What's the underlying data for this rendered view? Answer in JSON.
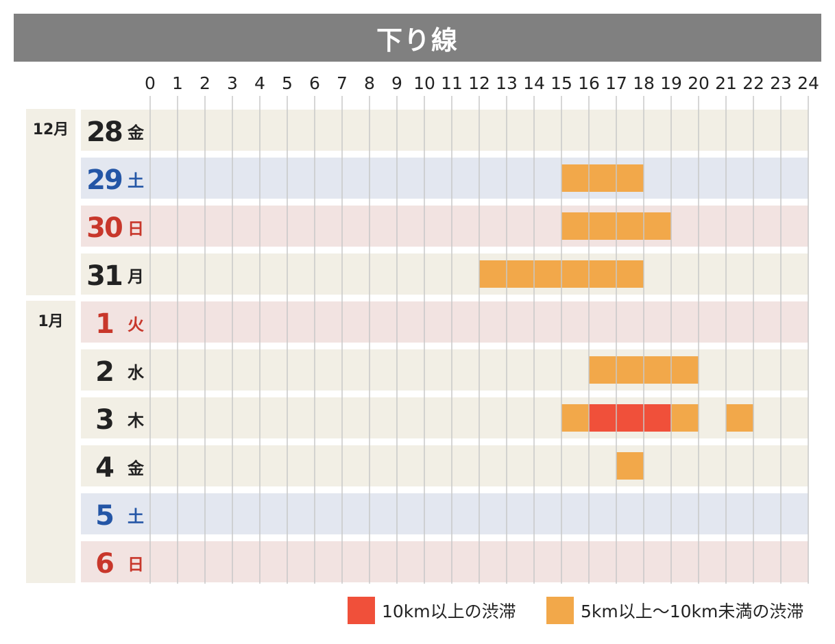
{
  "title": "下り線",
  "chart_data": {
    "type": "bar",
    "orientation": "horizontal-timeline",
    "x": [
      0,
      1,
      2,
      3,
      4,
      5,
      6,
      7,
      8,
      9,
      10,
      11,
      12,
      13,
      14,
      15,
      16,
      17,
      18,
      19,
      20,
      21,
      22,
      23,
      24
    ],
    "xlim": [
      0,
      24
    ],
    "grid": true,
    "legend_position": "bottom-right",
    "colors": {
      "heavy": "#f0503a",
      "moderate": "#f2a84a",
      "row_weekday": "#f2efe5",
      "row_saturday": "#e3e7f0",
      "row_holiday": "#f2e3e1",
      "text_weekday": "#222222",
      "text_saturday": "#2456a6",
      "text_holiday": "#c8372b",
      "grid": "#c8c8c8"
    },
    "months": [
      {
        "label": "12月",
        "start_row": 0,
        "end_row": 3
      },
      {
        "label": "1月",
        "start_row": 4,
        "end_row": 9
      }
    ],
    "rows": [
      {
        "day": "28",
        "weekday": "金",
        "type": "weekday",
        "segments": []
      },
      {
        "day": "29",
        "weekday": "土",
        "type": "saturday",
        "segments": [
          {
            "start": 15,
            "end": 18,
            "level": "moderate"
          }
        ]
      },
      {
        "day": "30",
        "weekday": "日",
        "type": "holiday",
        "segments": [
          {
            "start": 15,
            "end": 19,
            "level": "moderate"
          }
        ]
      },
      {
        "day": "31",
        "weekday": "月",
        "type": "weekday",
        "segments": [
          {
            "start": 12,
            "end": 18,
            "level": "moderate"
          }
        ]
      },
      {
        "day": "1",
        "weekday": "火",
        "type": "holiday",
        "segments": []
      },
      {
        "day": "2",
        "weekday": "水",
        "type": "weekday",
        "segments": [
          {
            "start": 16,
            "end": 20,
            "level": "moderate"
          }
        ]
      },
      {
        "day": "3",
        "weekday": "木",
        "type": "weekday",
        "segments": [
          {
            "start": 15,
            "end": 16,
            "level": "moderate"
          },
          {
            "start": 16,
            "end": 19,
            "level": "heavy"
          },
          {
            "start": 19,
            "end": 20,
            "level": "moderate"
          },
          {
            "start": 21,
            "end": 22,
            "level": "moderate"
          }
        ]
      },
      {
        "day": "4",
        "weekday": "金",
        "type": "weekday",
        "segments": [
          {
            "start": 17,
            "end": 18,
            "level": "moderate"
          }
        ]
      },
      {
        "day": "5",
        "weekday": "土",
        "type": "saturday",
        "segments": []
      },
      {
        "day": "6",
        "weekday": "日",
        "type": "holiday",
        "segments": []
      }
    ],
    "legend": [
      {
        "label": "10km以上の渋滞",
        "level": "heavy"
      },
      {
        "label": "5km以上～10km未満の渋滞",
        "level": "moderate"
      }
    ]
  }
}
